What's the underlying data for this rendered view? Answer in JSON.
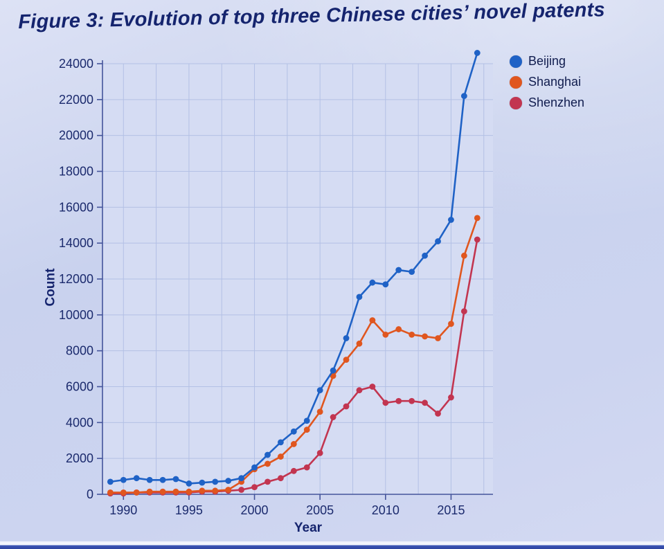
{
  "chart_data": {
    "type": "line",
    "title": "Figure 3: Evolution of top three Chinese cities’ novel patents",
    "xlabel": "Year",
    "ylabel": "Count",
    "x": [
      1989,
      1990,
      1991,
      1992,
      1993,
      1994,
      1995,
      1996,
      1997,
      1998,
      1999,
      2000,
      2001,
      2002,
      2003,
      2004,
      2005,
      2006,
      2007,
      2008,
      2009,
      2010,
      2011,
      2012,
      2013,
      2014,
      2015,
      2016,
      2017
    ],
    "series": [
      {
        "name": "Beijing",
        "color": "#1f62c6",
        "values": [
          700,
          800,
          900,
          800,
          800,
          850,
          600,
          650,
          700,
          750,
          900,
          1500,
          2200,
          2900,
          3500,
          4100,
          5800,
          6900,
          8700,
          11000,
          11800,
          11700,
          12500,
          12400,
          13300,
          14100,
          15300,
          22200,
          24600
        ]
      },
      {
        "name": "Shanghai",
        "color": "#e0561f",
        "values": [
          100,
          100,
          100,
          150,
          150,
          150,
          150,
          200,
          200,
          250,
          700,
          1400,
          1700,
          2100,
          2800,
          3600,
          4600,
          6600,
          7500,
          8400,
          9700,
          8900,
          9200,
          8900,
          8800,
          8700,
          9500,
          13300,
          15400
        ]
      },
      {
        "name": "Shenzhen",
        "color": "#c23550",
        "values": [
          50,
          50,
          100,
          100,
          100,
          100,
          100,
          150,
          150,
          200,
          250,
          400,
          700,
          900,
          1300,
          1500,
          2300,
          4300,
          4900,
          5800,
          6000,
          5100,
          5200,
          5200,
          5100,
          4500,
          5400,
          10200,
          14200
        ]
      }
    ],
    "ylim": [
      0,
      24000
    ],
    "yticks": [
      0,
      2000,
      4000,
      6000,
      8000,
      10000,
      12000,
      14000,
      16000,
      18000,
      20000,
      22000,
      24000
    ],
    "xticks": [
      1990,
      1995,
      2000,
      2005,
      2010,
      2015
    ],
    "grid": true,
    "legend_position": "top-right"
  },
  "colors": {
    "beijing": "#1f62c6",
    "shanghai": "#e0561f",
    "shenzhen": "#c23550",
    "axis_text": "#1b2a6d",
    "background": "#c9d2ee"
  }
}
